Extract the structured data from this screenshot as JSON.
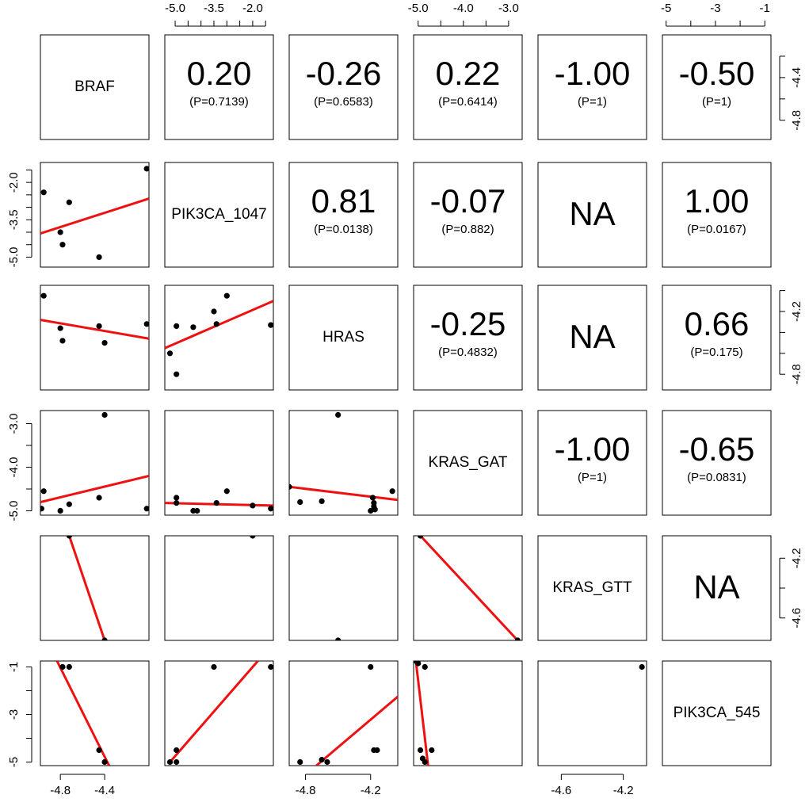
{
  "chart_data": {
    "type": "scatter-matrix",
    "title": "",
    "variables": [
      "BRAF",
      "PIK3CA_1047",
      "HRAS",
      "KRAS_GAT",
      "KRAS_GTT",
      "PIK3CA_545"
    ],
    "ranges": [
      [
        -4.98,
        -4.0
      ],
      [
        -5.4,
        -1.2
      ],
      [
        -4.95,
        -3.95
      ],
      [
        -5.1,
        -2.7
      ],
      [
        -4.75,
        -4.05
      ],
      [
        -5.15,
        -0.75
      ]
    ],
    "ticks": {
      "x_bottom": [
        {
          "var": 0,
          "values": [
            -4.8,
            -4.4
          ],
          "labels": [
            "-4.8",
            "-4.4"
          ]
        },
        {
          "var": 2,
          "values": [
            -4.8,
            -4.2
          ],
          "labels": [
            "-4.8",
            "-4.2"
          ]
        },
        {
          "var": 4,
          "values": [
            -4.6,
            -4.2
          ],
          "labels": [
            "-4.6",
            "-4.2"
          ]
        }
      ],
      "x_top": [
        {
          "var": 1,
          "values": [
            -5.0,
            -4.5,
            -4.0,
            -3.5,
            -3.0,
            -2.5,
            -2.0,
            -1.5
          ],
          "labels": [
            "-5.0",
            "",
            "",
            "-3.5",
            "",
            "",
            "-2.0",
            ""
          ]
        },
        {
          "var": 3,
          "values": [
            -5.0,
            -4.5,
            -4.0,
            -3.5,
            -3.0
          ],
          "labels": [
            "-5.0",
            "",
            "-4.0",
            "",
            "-3.0"
          ]
        },
        {
          "var": 5,
          "values": [
            -5,
            -4,
            -3,
            -2,
            -1
          ],
          "labels": [
            "-5",
            "",
            "-3",
            "",
            "-1"
          ]
        }
      ],
      "y_left": [
        {
          "var": 1,
          "values": [
            -5.0,
            -4.5,
            -4.0,
            -3.5,
            -3.0,
            -2.5,
            -2.0,
            -1.5
          ],
          "labels": [
            "-5.0",
            "",
            "",
            "-3.5",
            "",
            "",
            "-2.0",
            ""
          ]
        },
        {
          "var": 3,
          "values": [
            -5.0,
            -4.5,
            -4.0,
            -3.5,
            -3.0
          ],
          "labels": [
            "-5.0",
            "",
            "-4.0",
            "",
            "-3.0"
          ]
        },
        {
          "var": 5,
          "values": [
            -5,
            -4,
            -3,
            -2,
            -1
          ],
          "labels": [
            "-5",
            "",
            "-3",
            "",
            "-1"
          ]
        }
      ],
      "y_right": [
        {
          "var": 0,
          "values": [
            -4.8,
            -4.6,
            -4.4,
            -4.2
          ],
          "labels": [
            "-4.8",
            "",
            "-4.4",
            ""
          ]
        },
        {
          "var": 2,
          "values": [
            -4.8,
            -4.6,
            -4.4,
            -4.2,
            -4.0
          ],
          "labels": [
            "-4.8",
            "",
            "",
            "-4.2",
            ""
          ]
        },
        {
          "var": 4,
          "values": [
            -4.6,
            -4.4,
            -4.2
          ],
          "labels": [
            "-4.6",
            "",
            "-4.2"
          ]
        }
      ]
    },
    "correlations": [
      {
        "row": 0,
        "col": 1,
        "r": "0.20",
        "p": "(P=0.7139)"
      },
      {
        "row": 0,
        "col": 2,
        "r": "-0.26",
        "p": "(P=0.6583)"
      },
      {
        "row": 0,
        "col": 3,
        "r": "0.22",
        "p": "(P=0.6414)"
      },
      {
        "row": 0,
        "col": 4,
        "r": "-1.00",
        "p": "(P=1)"
      },
      {
        "row": 0,
        "col": 5,
        "r": "-0.50",
        "p": "(P=1)"
      },
      {
        "row": 1,
        "col": 2,
        "r": "0.81",
        "p": "(P=0.0138)"
      },
      {
        "row": 1,
        "col": 3,
        "r": "-0.07",
        "p": "(P=0.882)"
      },
      {
        "row": 1,
        "col": 4,
        "r": "NA",
        "p": ""
      },
      {
        "row": 1,
        "col": 5,
        "r": "1.00",
        "p": "(P=0.0167)"
      },
      {
        "row": 2,
        "col": 3,
        "r": "-0.25",
        "p": "(P=0.4832)"
      },
      {
        "row": 2,
        "col": 4,
        "r": "NA",
        "p": ""
      },
      {
        "row": 2,
        "col": 5,
        "r": "0.66",
        "p": "(P=0.175)"
      },
      {
        "row": 3,
        "col": 4,
        "r": "-1.00",
        "p": "(P=1)"
      },
      {
        "row": 3,
        "col": 5,
        "r": "-0.65",
        "p": "(P=0.0831)"
      },
      {
        "row": 4,
        "col": 5,
        "r": "NA",
        "p": ""
      }
    ],
    "scatter_panels": [
      {
        "row": 1,
        "col": 0,
        "points": [
          [
            -4.95,
            -2.4
          ],
          [
            -4.72,
            -2.8
          ],
          [
            -4.8,
            -4.0
          ],
          [
            -4.78,
            -4.5
          ],
          [
            -4.45,
            -5.0
          ],
          [
            -4.02,
            -1.45
          ]
        ],
        "fit": [
          [
            -4.98,
            -4.05
          ],
          [
            -4.0,
            -2.65
          ]
        ]
      },
      {
        "row": 2,
        "col": 0,
        "points": [
          [
            -4.95,
            -4.05
          ],
          [
            -4.8,
            -4.36
          ],
          [
            -4.78,
            -4.48
          ],
          [
            -4.45,
            -4.34
          ],
          [
            -4.4,
            -4.5
          ],
          [
            -4.02,
            -4.32
          ]
        ],
        "fit": [
          [
            -4.98,
            -4.28
          ],
          [
            -4.0,
            -4.46
          ]
        ]
      },
      {
        "row": 2,
        "col": 1,
        "points": [
          [
            -5.2,
            -4.6
          ],
          [
            -4.95,
            -4.34
          ],
          [
            -4.95,
            -4.8
          ],
          [
            -4.3,
            -4.35
          ],
          [
            -3.5,
            -4.2
          ],
          [
            -3.4,
            -4.32
          ],
          [
            -3.0,
            -4.05
          ],
          [
            -1.3,
            -4.33
          ]
        ],
        "fit": [
          [
            -5.4,
            -4.55
          ],
          [
            -1.2,
            -4.1
          ]
        ]
      },
      {
        "row": 3,
        "col": 0,
        "points": [
          [
            -4.97,
            -4.95
          ],
          [
            -4.95,
            -4.55
          ],
          [
            -4.8,
            -5.0
          ],
          [
            -4.72,
            -4.85
          ],
          [
            -4.45,
            -4.7
          ],
          [
            -4.4,
            -2.8
          ],
          [
            -4.02,
            -4.95
          ]
        ],
        "fit": [
          [
            -4.98,
            -4.8
          ],
          [
            -4.0,
            -4.2
          ]
        ]
      },
      {
        "row": 3,
        "col": 1,
        "points": [
          [
            -4.95,
            -4.7
          ],
          [
            -4.95,
            -4.82
          ],
          [
            -4.3,
            -5.0
          ],
          [
            -4.15,
            -5.0
          ],
          [
            -3.4,
            -4.82
          ],
          [
            -3.0,
            -4.55
          ],
          [
            -2.0,
            -4.88
          ],
          [
            -1.3,
            -4.95
          ]
        ],
        "fit": [
          [
            -5.4,
            -4.82
          ],
          [
            -1.2,
            -4.88
          ]
        ]
      },
      {
        "row": 3,
        "col": 2,
        "points": [
          [
            -4.95,
            -4.45
          ],
          [
            -4.85,
            -4.8
          ],
          [
            -4.65,
            -4.78
          ],
          [
            -4.5,
            -2.8
          ],
          [
            -4.2,
            -5.0
          ],
          [
            -4.18,
            -4.7
          ],
          [
            -4.17,
            -4.82
          ],
          [
            -4.17,
            -4.9
          ],
          [
            -4.16,
            -4.97
          ],
          [
            -4.0,
            -4.55
          ]
        ],
        "fit": [
          [
            -4.95,
            -4.45
          ],
          [
            -3.95,
            -4.75
          ]
        ]
      },
      {
        "row": 4,
        "col": 0,
        "points": [
          [
            -4.72,
            -4.05
          ],
          [
            -4.4,
            -4.75
          ]
        ],
        "fit": [
          [
            -4.72,
            -4.05
          ],
          [
            -4.4,
            -4.75
          ]
        ]
      },
      {
        "row": 4,
        "col": 1,
        "points": [
          [
            -2.0,
            -4.05
          ]
        ],
        "fit": []
      },
      {
        "row": 4,
        "col": 2,
        "points": [
          [
            -4.5,
            -4.75
          ]
        ],
        "fit": []
      },
      {
        "row": 4,
        "col": 3,
        "points": [
          [
            -4.95,
            -4.05
          ],
          [
            -2.8,
            -4.75
          ]
        ],
        "fit": [
          [
            -4.95,
            -4.05
          ],
          [
            -2.8,
            -4.75
          ]
        ]
      },
      {
        "row": 5,
        "col": 0,
        "points": [
          [
            -4.78,
            -1.0
          ],
          [
            -4.72,
            -1.0
          ],
          [
            -4.45,
            -4.5
          ],
          [
            -4.4,
            -5.0
          ]
        ],
        "fit": [
          [
            -4.83,
            -0.75
          ],
          [
            -4.36,
            -5.15
          ]
        ]
      },
      {
        "row": 5,
        "col": 1,
        "points": [
          [
            -5.2,
            -5.0
          ],
          [
            -4.95,
            -4.5
          ],
          [
            -4.95,
            -5.0
          ],
          [
            -3.5,
            -1.0
          ],
          [
            -1.3,
            -1.0
          ]
        ],
        "fit": [
          [
            -5.2,
            -5.0
          ],
          [
            -1.8,
            -0.75
          ]
        ]
      },
      {
        "row": 5,
        "col": 2,
        "points": [
          [
            -4.85,
            -5.0
          ],
          [
            -4.65,
            -4.9
          ],
          [
            -4.6,
            -5.0
          ],
          [
            -4.2,
            -1.0
          ],
          [
            -4.17,
            -4.5
          ],
          [
            -4.14,
            -4.5
          ]
        ],
        "fit": [
          [
            -4.7,
            -5.15
          ],
          [
            -3.95,
            -2.25
          ]
        ]
      },
      {
        "row": 5,
        "col": 3,
        "points": [
          [
            -5.05,
            -0.75
          ],
          [
            -5.0,
            -0.85
          ],
          [
            -4.85,
            -1.0
          ],
          [
            -4.95,
            -4.5
          ],
          [
            -4.9,
            -4.85
          ],
          [
            -4.85,
            -5.0
          ],
          [
            -4.7,
            -4.5
          ]
        ],
        "fit": [
          [
            -5.05,
            -0.75
          ],
          [
            -4.78,
            -5.15
          ]
        ]
      },
      {
        "row": 5,
        "col": 4,
        "points": [
          [
            -4.08,
            -1.0
          ]
        ],
        "fit": []
      }
    ]
  }
}
